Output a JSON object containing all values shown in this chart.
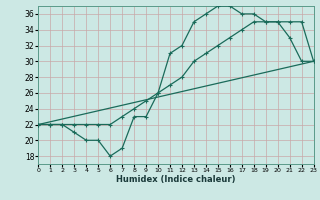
{
  "xlabel": "Humidex (Indice chaleur)",
  "bg_color": "#cce8e4",
  "grid_color": "#b8d8d4",
  "line_color": "#1a6b5a",
  "xlim": [
    0,
    23
  ],
  "ylim": [
    17,
    37
  ],
  "xticks": [
    0,
    1,
    2,
    3,
    4,
    5,
    6,
    7,
    8,
    9,
    10,
    11,
    12,
    13,
    14,
    15,
    16,
    17,
    18,
    19,
    20,
    21,
    22,
    23
  ],
  "yticks": [
    18,
    20,
    22,
    24,
    26,
    28,
    30,
    32,
    34,
    36
  ],
  "curve_irreg_x": [
    0,
    1,
    2,
    3,
    4,
    5,
    6,
    7,
    8,
    9,
    10,
    11,
    12,
    13,
    14,
    15,
    16,
    17,
    18,
    19,
    20,
    21,
    22,
    23
  ],
  "curve_irreg_y": [
    22,
    22,
    22,
    21,
    20,
    20,
    18,
    19,
    23,
    23,
    26,
    31,
    32,
    35,
    36,
    37,
    37,
    36,
    36,
    35,
    35,
    33,
    30,
    30
  ],
  "curve_smooth_x": [
    0,
    1,
    2,
    3,
    4,
    5,
    6,
    7,
    8,
    9,
    10,
    11,
    12,
    13,
    14,
    15,
    16,
    17,
    18,
    19,
    20,
    21,
    22,
    23
  ],
  "curve_smooth_y": [
    22,
    22,
    22,
    22,
    22,
    22,
    22,
    23,
    24,
    25,
    26,
    27,
    28,
    30,
    31,
    32,
    33,
    34,
    35,
    35,
    35,
    35,
    35,
    30
  ],
  "trend_x": [
    0,
    23
  ],
  "trend_y": [
    22,
    30
  ]
}
